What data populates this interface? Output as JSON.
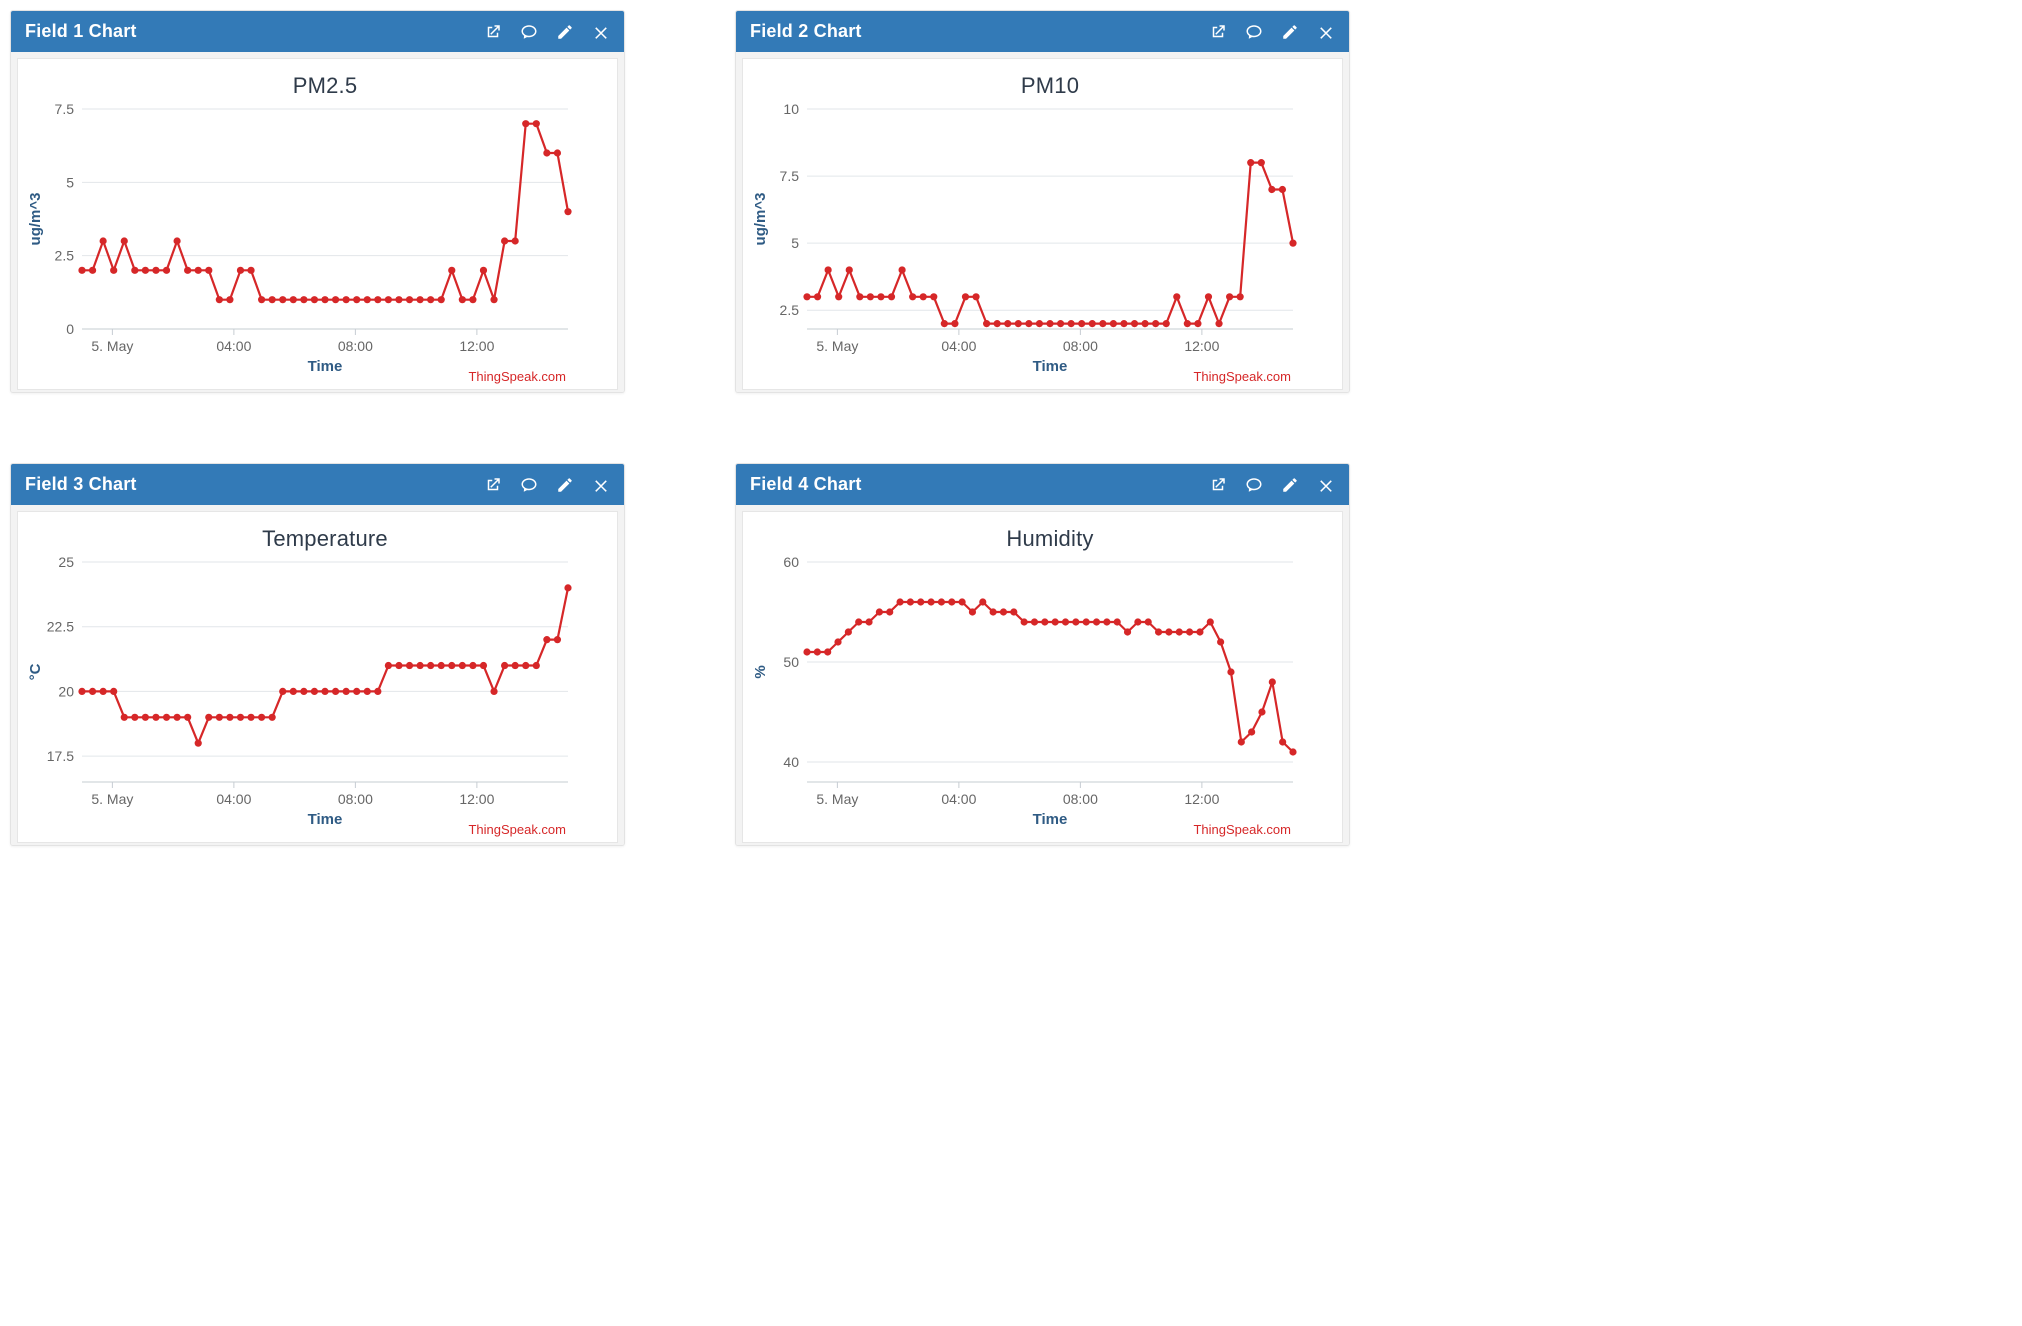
{
  "layout": {
    "panel_header_bg": "#337ab7",
    "panel_header_fg": "#ffffff",
    "page_bg": "#ffffff",
    "body_bg": "#f3f3f3",
    "border_color": "#e3e3e3"
  },
  "credit": "ThingSpeak.com",
  "x_ticks": {
    "labels": [
      "5. May",
      "04:00",
      "08:00",
      "12:00"
    ],
    "positions": [
      3,
      15,
      27,
      39
    ]
  },
  "x_axis_label": "Time",
  "x_index_range": [
    0,
    48
  ],
  "common_style": {
    "line_color": "#d62728",
    "marker_color": "#d62728",
    "line_width": 2.2,
    "marker_radius": 3.6,
    "grid_color": "#e2e6ea",
    "axis_line_color": "#c6ccd2",
    "title_fontsize": 22,
    "ylabel_fontsize": 15,
    "tick_fontsize": 14,
    "chart_bg": "#ffffff",
    "title_color": "#2f3b4a",
    "axis_label_color": "#2f5b84",
    "tick_label_color": "#666666",
    "credit_color": "#d62728"
  },
  "panels": [
    {
      "id": "field1",
      "header": "Field 1 Chart",
      "chart": {
        "type": "line",
        "title": "PM2.5",
        "ylabel": "ug/m^3",
        "ylim": [
          0,
          7.5
        ],
        "ytick_step": 2.5,
        "values": [
          2,
          2,
          3,
          2,
          3,
          2,
          2,
          2,
          2,
          3,
          2,
          2,
          2,
          1,
          1,
          2,
          2,
          1,
          1,
          1,
          1,
          1,
          1,
          1,
          1,
          1,
          1,
          1,
          1,
          1,
          1,
          1,
          1,
          1,
          1,
          2,
          1,
          1,
          2,
          1,
          3,
          3,
          7,
          7,
          6,
          6,
          4
        ]
      }
    },
    {
      "id": "field2",
      "header": "Field 2 Chart",
      "chart": {
        "type": "line",
        "title": "PM10",
        "ylabel": "ug/m^3",
        "ylim": [
          1.8,
          10
        ],
        "ytick_step": 2.5,
        "ytick_start": 2.5,
        "values": [
          3,
          3,
          4,
          3,
          4,
          3,
          3,
          3,
          3,
          4,
          3,
          3,
          3,
          2,
          2,
          3,
          3,
          2,
          2,
          2,
          2,
          2,
          2,
          2,
          2,
          2,
          2,
          2,
          2,
          2,
          2,
          2,
          2,
          2,
          2,
          3,
          2,
          2,
          3,
          2,
          3,
          3,
          8,
          8,
          7,
          7,
          5
        ]
      }
    },
    {
      "id": "field3",
      "header": "Field 3 Chart",
      "chart": {
        "type": "line",
        "title": "Temperature",
        "ylabel": "°C",
        "ylim": [
          16.5,
          25
        ],
        "ytick_step": 2.5,
        "ytick_start": 17.5,
        "values": [
          20,
          20,
          20,
          20,
          19,
          19,
          19,
          19,
          19,
          19,
          19,
          18,
          19,
          19,
          19,
          19,
          19,
          19,
          19,
          20,
          20,
          20,
          20,
          20,
          20,
          20,
          20,
          20,
          20,
          21,
          21,
          21,
          21,
          21,
          21,
          21,
          21,
          21,
          21,
          20,
          21,
          21,
          21,
          21,
          22,
          22,
          24
        ]
      }
    },
    {
      "id": "field4",
      "header": "Field 4 Chart",
      "chart": {
        "type": "line",
        "title": "Humidity",
        "ylabel": "%",
        "ylim": [
          38,
          60
        ],
        "ytick_step": 10,
        "ytick_start": 40,
        "values": [
          51,
          51,
          51,
          52,
          53,
          54,
          54,
          55,
          55,
          56,
          56,
          56,
          56,
          56,
          56,
          56,
          55,
          56,
          55,
          55,
          55,
          54,
          54,
          54,
          54,
          54,
          54,
          54,
          54,
          54,
          54,
          53,
          54,
          54,
          53,
          53,
          53,
          53,
          53,
          54,
          52,
          49,
          42,
          43,
          45,
          48,
          42,
          41
        ]
      }
    }
  ]
}
